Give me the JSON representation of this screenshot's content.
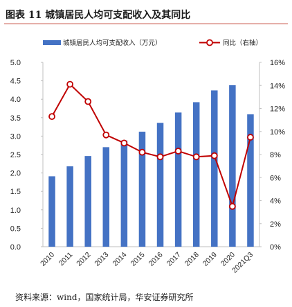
{
  "figure": {
    "title": "图表 11  城镇居民人均可支配收入及其同比",
    "source": "资料来源：wind，国家统计局，华安证券研究所"
  },
  "chart_data": {
    "type": "bar+line",
    "categories": [
      "2010",
      "2011",
      "2012",
      "2013",
      "2014",
      "2015",
      "2016",
      "2017",
      "2018",
      "2019",
      "2020",
      "2021Q3"
    ],
    "series": [
      {
        "name": "城镇居民人均可支配收入（万元）",
        "type": "bar",
        "axis": "left",
        "color": "#4472c4",
        "values": [
          1.91,
          2.18,
          2.46,
          2.7,
          2.88,
          3.12,
          3.36,
          3.64,
          3.92,
          4.24,
          4.38,
          3.59
        ]
      },
      {
        "name": "同比（右轴）",
        "type": "line",
        "axis": "right",
        "color": "#c00000",
        "values": [
          11.3,
          14.1,
          12.6,
          9.7,
          9.0,
          8.2,
          7.8,
          8.3,
          7.8,
          7.9,
          3.5,
          9.5
        ]
      }
    ],
    "y_left": {
      "min": 0,
      "max": 5,
      "ticks": [
        "0.0",
        "0.5",
        "1.0",
        "1.5",
        "2.0",
        "2.5",
        "3.0",
        "3.5",
        "4.0",
        "4.5",
        "5.0"
      ]
    },
    "y_right": {
      "min": 0,
      "max": 16,
      "ticks": [
        "0%",
        "2%",
        "4%",
        "6%",
        "8%",
        "10%",
        "12%",
        "14%",
        "16%"
      ]
    },
    "grid": false,
    "legend_position": "top"
  }
}
